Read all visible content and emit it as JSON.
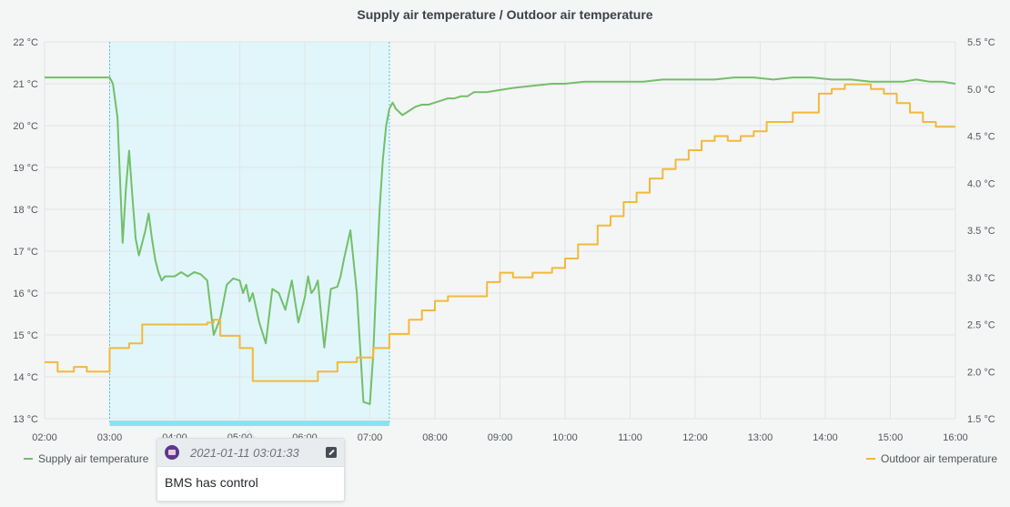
{
  "chart_data": {
    "type": "line",
    "title": "Supply air temperature / Outdoor air temperature",
    "x_ticks": [
      "02:00",
      "03:00",
      "04:00",
      "05:00",
      "06:00",
      "07:00",
      "08:00",
      "09:00",
      "10:00",
      "11:00",
      "12:00",
      "13:00",
      "14:00",
      "15:00",
      "16:00"
    ],
    "x_range_hours": [
      2.0,
      16.0
    ],
    "y_left": {
      "unit": "°C",
      "ylim": [
        13,
        22
      ],
      "ticks": [
        "13 °C",
        "14 °C",
        "15 °C",
        "16 °C",
        "17 °C",
        "18 °C",
        "19 °C",
        "20 °C",
        "21 °C",
        "22 °C"
      ]
    },
    "y_right": {
      "unit": "°C",
      "ylim": [
        1.5,
        5.5
      ],
      "ticks": [
        "1.5 °C",
        "2.0 °C",
        "2.5 °C",
        "3.0 °C",
        "3.5 °C",
        "4.0 °C",
        "4.5 °C",
        "5.0 °C",
        "5.5 °C"
      ]
    },
    "grid": true,
    "series": [
      {
        "name": "Supply air temperature",
        "axis": "left",
        "color": "#73bf69",
        "x": [
          2.0,
          3.0,
          3.05,
          3.12,
          3.2,
          3.25,
          3.3,
          3.35,
          3.4,
          3.45,
          3.5,
          3.55,
          3.6,
          3.65,
          3.7,
          3.75,
          3.8,
          3.85,
          3.9,
          4.0,
          4.1,
          4.2,
          4.3,
          4.4,
          4.5,
          4.6,
          4.7,
          4.8,
          4.9,
          5.0,
          5.05,
          5.1,
          5.15,
          5.2,
          5.3,
          5.4,
          5.5,
          5.6,
          5.7,
          5.8,
          5.9,
          6.0,
          6.05,
          6.1,
          6.15,
          6.2,
          6.3,
          6.4,
          6.5,
          6.55,
          6.6,
          6.7,
          6.8,
          6.9,
          7.0,
          7.05,
          7.1,
          7.15,
          7.2,
          7.25,
          7.3,
          7.35,
          7.4,
          7.5,
          7.6,
          7.7,
          7.8,
          7.9,
          8.0,
          8.1,
          8.2,
          8.3,
          8.4,
          8.5,
          8.6,
          8.8,
          9.0,
          9.2,
          9.5,
          9.8,
          10.0,
          10.3,
          10.6,
          10.9,
          11.2,
          11.5,
          11.8,
          12.0,
          12.3,
          12.6,
          12.9,
          13.2,
          13.5,
          13.8,
          14.1,
          14.4,
          14.7,
          15.0,
          15.2,
          15.4,
          15.6,
          15.8,
          16.0
        ],
        "y": [
          21.15,
          21.15,
          21.0,
          20.2,
          17.2,
          18.5,
          19.4,
          18.3,
          17.3,
          16.9,
          17.2,
          17.5,
          17.9,
          17.3,
          16.8,
          16.5,
          16.3,
          16.4,
          16.4,
          16.4,
          16.5,
          16.4,
          16.5,
          16.45,
          16.3,
          15.0,
          15.4,
          16.2,
          16.35,
          16.3,
          16.0,
          16.2,
          15.8,
          16.0,
          15.3,
          14.8,
          16.1,
          16.0,
          15.6,
          16.3,
          15.3,
          15.9,
          16.4,
          16.0,
          16.1,
          16.3,
          14.7,
          16.1,
          16.15,
          16.4,
          16.8,
          17.5,
          16.0,
          13.4,
          13.35,
          14.5,
          16.3,
          18.0,
          19.2,
          20.0,
          20.4,
          20.55,
          20.4,
          20.25,
          20.35,
          20.45,
          20.5,
          20.5,
          20.55,
          20.6,
          20.65,
          20.65,
          20.7,
          20.7,
          20.8,
          20.8,
          20.85,
          20.9,
          20.95,
          21.0,
          21.0,
          21.05,
          21.05,
          21.05,
          21.05,
          21.1,
          21.1,
          21.1,
          21.1,
          21.15,
          21.15,
          21.1,
          21.15,
          21.15,
          21.1,
          21.1,
          21.05,
          21.05,
          21.05,
          21.1,
          21.05,
          21.05,
          21.0
        ],
        "unit": "°C"
      },
      {
        "name": "Outdoor air temperature",
        "axis": "right",
        "color": "#f2b93b",
        "x": [
          2.0,
          2.2,
          2.45,
          2.65,
          2.85,
          3.0,
          3.3,
          3.5,
          4.0,
          4.5,
          4.6,
          4.7,
          5.0,
          5.2,
          6.0,
          6.2,
          6.5,
          6.8,
          7.05,
          7.3,
          7.6,
          7.8,
          8.0,
          8.2,
          8.5,
          8.8,
          9.0,
          9.2,
          9.5,
          9.8,
          10.0,
          10.2,
          10.5,
          10.7,
          10.9,
          11.1,
          11.3,
          11.5,
          11.7,
          11.9,
          12.1,
          12.3,
          12.5,
          12.7,
          12.9,
          13.1,
          13.5,
          13.9,
          14.1,
          14.3,
          14.5,
          14.7,
          14.9,
          15.1,
          15.3,
          15.5,
          15.7,
          16.0
        ],
        "y": [
          2.1,
          2.0,
          2.05,
          2.0,
          2.0,
          2.25,
          2.3,
          2.5,
          2.5,
          2.52,
          2.55,
          2.38,
          2.25,
          1.9,
          1.9,
          2.0,
          2.1,
          2.15,
          2.25,
          2.4,
          2.55,
          2.65,
          2.75,
          2.8,
          2.8,
          2.95,
          3.05,
          3.0,
          3.05,
          3.1,
          3.2,
          3.35,
          3.55,
          3.65,
          3.8,
          3.9,
          4.05,
          4.15,
          4.25,
          4.35,
          4.45,
          4.5,
          4.45,
          4.5,
          4.55,
          4.65,
          4.75,
          4.95,
          5.0,
          5.05,
          5.05,
          5.0,
          4.95,
          4.85,
          4.75,
          4.65,
          4.6,
          4.6
        ],
        "unit": "°C"
      }
    ],
    "annotation": {
      "region_start_hours": 3.0,
      "region_end_hours": 7.3,
      "region_color": "#8ae2f0",
      "timestamp": "2021-01-11 03:01:33",
      "text": "BMS has control"
    }
  },
  "legend": {
    "left": {
      "label": "Supply air temperature",
      "color": "#73bf69"
    },
    "right": {
      "label": "Outdoor air temperature",
      "color": "#f2b93b"
    }
  },
  "tooltip": {
    "timestamp": "2021-01-11 03:01:33",
    "text": "BMS has control",
    "avatar_icon": "user-avatar-icon",
    "edit_icon": "edit-icon"
  }
}
